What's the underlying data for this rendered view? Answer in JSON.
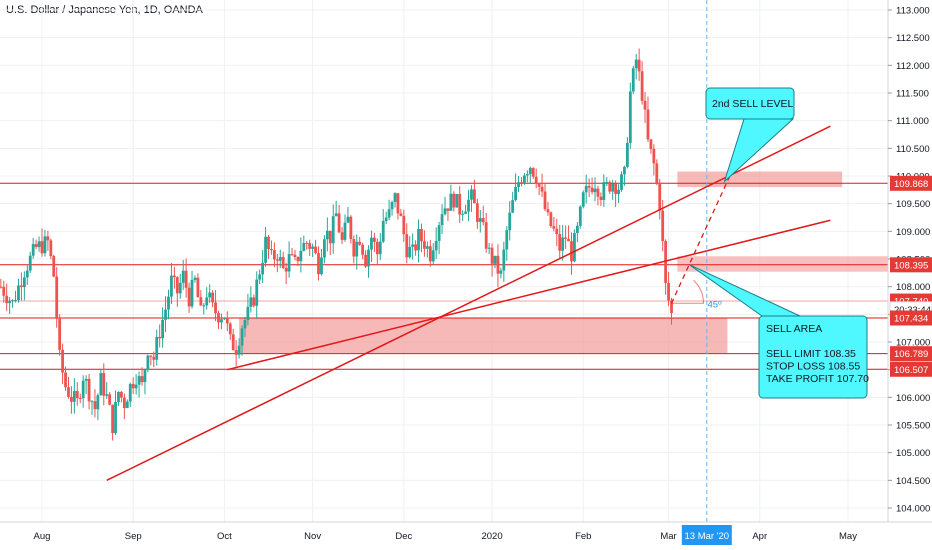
{
  "title": "U.S. Dollar / Japanese Yen, 1D, OANDA",
  "colors": {
    "up": "#26a69a",
    "down": "#ef5350",
    "line": "#e01818",
    "zone": "#f4a0a0",
    "callout_fill": "#4ff7ff",
    "callout_border": "#1b7f88",
    "dashed_vertical": "#64b5f6",
    "date_badge": "#2196f3",
    "price_badge": "#e53935",
    "grid": "#eef0f3"
  },
  "chart_data": {
    "type": "candlestick",
    "symbol": "U.S. Dollar / Japanese Yen",
    "timeframe": "1D",
    "source": "OANDA",
    "ylim": [
      103.7,
      113.1
    ],
    "y_ticks": [
      "113.000",
      "112.500",
      "112.000",
      "111.500",
      "111.000",
      "110.500",
      "110.000",
      "109.500",
      "109.000",
      "108.500",
      "108.000",
      "107.500",
      "107.000",
      "106.500",
      "106.000",
      "105.500",
      "105.000",
      "104.500",
      "104.000"
    ],
    "x_ticks": [
      "Aug",
      "Sep",
      "Oct",
      "Nov",
      "Dec",
      "2020",
      "Feb",
      "Mar",
      "Apr",
      "May"
    ],
    "x_tick_day": [
      0,
      31,
      62,
      92,
      123,
      153,
      184,
      213,
      244,
      274
    ],
    "close_path": [
      [
        -14,
        108.0
      ],
      [
        -10,
        107.7
      ],
      [
        -6,
        108.3
      ],
      [
        -2,
        108.7
      ],
      [
        2,
        108.8
      ],
      [
        4,
        108.2
      ],
      [
        6,
        106.7
      ],
      [
        8,
        106.2
      ],
      [
        10,
        106.0
      ],
      [
        12,
        105.9
      ],
      [
        14,
        106.4
      ],
      [
        16,
        106.1
      ],
      [
        18,
        105.8
      ],
      [
        20,
        106.3
      ],
      [
        22,
        106.0
      ],
      [
        24,
        105.5
      ],
      [
        26,
        106.1
      ],
      [
        28,
        105.9
      ],
      [
        30,
        106.2
      ],
      [
        32,
        106.4
      ],
      [
        34,
        106.2
      ],
      [
        36,
        106.9
      ],
      [
        38,
        106.7
      ],
      [
        40,
        107.2
      ],
      [
        42,
        107.6
      ],
      [
        44,
        108.1
      ],
      [
        46,
        107.9
      ],
      [
        48,
        108.2
      ],
      [
        50,
        107.8
      ],
      [
        52,
        108.1
      ],
      [
        54,
        107.5
      ],
      [
        56,
        107.9
      ],
      [
        58,
        107.6
      ],
      [
        60,
        107.5
      ],
      [
        62,
        107.5
      ],
      [
        64,
        107.0
      ],
      [
        66,
        106.9
      ],
      [
        68,
        107.3
      ],
      [
        70,
        107.5
      ],
      [
        72,
        107.8
      ],
      [
        74,
        108.3
      ],
      [
        76,
        108.8
      ],
      [
        78,
        108.5
      ],
      [
        80,
        108.6
      ],
      [
        82,
        108.3
      ],
      [
        84,
        108.5
      ],
      [
        86,
        108.4
      ],
      [
        88,
        108.7
      ],
      [
        90,
        108.8
      ],
      [
        92,
        108.7
      ],
      [
        94,
        108.4
      ],
      [
        96,
        109.0
      ],
      [
        98,
        108.9
      ],
      [
        100,
        109.3
      ],
      [
        102,
        108.8
      ],
      [
        104,
        109.2
      ],
      [
        106,
        108.7
      ],
      [
        108,
        108.9
      ],
      [
        110,
        108.5
      ],
      [
        112,
        108.9
      ],
      [
        114,
        108.6
      ],
      [
        116,
        109.2
      ],
      [
        118,
        109.3
      ],
      [
        120,
        109.6
      ],
      [
        122,
        109.2
      ],
      [
        124,
        108.7
      ],
      [
        126,
        108.6
      ],
      [
        128,
        108.9
      ],
      [
        130,
        108.8
      ],
      [
        132,
        108.6
      ],
      [
        134,
        109.0
      ],
      [
        136,
        109.4
      ],
      [
        138,
        109.5
      ],
      [
        140,
        109.6
      ],
      [
        142,
        109.4
      ],
      [
        144,
        109.5
      ],
      [
        146,
        109.6
      ],
      [
        148,
        109.3
      ],
      [
        150,
        109.0
      ],
      [
        152,
        108.6
      ],
      [
        154,
        108.4
      ],
      [
        156,
        108.2
      ],
      [
        158,
        109.0
      ],
      [
        160,
        109.5
      ],
      [
        162,
        109.9
      ],
      [
        164,
        110.1
      ],
      [
        166,
        110.2
      ],
      [
        168,
        110.0
      ],
      [
        170,
        109.6
      ],
      [
        172,
        109.2
      ],
      [
        174,
        109.0
      ],
      [
        176,
        108.7
      ],
      [
        178,
        108.9
      ],
      [
        180,
        108.6
      ],
      [
        182,
        109.0
      ],
      [
        184,
        109.6
      ],
      [
        186,
        109.8
      ],
      [
        188,
        109.9
      ],
      [
        190,
        109.7
      ],
      [
        192,
        109.8
      ],
      [
        194,
        109.9
      ],
      [
        196,
        109.8
      ],
      [
        198,
        110.0
      ],
      [
        200,
        111.5
      ],
      [
        202,
        112.1
      ],
      [
        204,
        111.5
      ],
      [
        206,
        110.6
      ],
      [
        208,
        110.2
      ],
      [
        210,
        109.5
      ],
      [
        212,
        108.0
      ],
      [
        214,
        107.5
      ]
    ],
    "sell_area_zone": [
      106.8,
      107.43
    ],
    "second_sell_zone": [
      109.8,
      110.08
    ],
    "upper_zone": [
      108.27,
      108.55
    ],
    "horizontal_levels": [
      109.868,
      108.395,
      107.434,
      106.789,
      106.507
    ],
    "trendlines": [
      {
        "from": [
          22,
          104.5
        ],
        "to": [
          268,
          110.9
        ]
      },
      {
        "from": [
          63,
          106.5
        ],
        "to": [
          268,
          109.2
        ]
      }
    ],
    "dashed_line": {
      "from": [
        214,
        107.7
      ],
      "to": [
        239,
        110.6
      ]
    },
    "angle_label": "45º",
    "current_vertical_day": 226,
    "date_badge": "13 Mar '20",
    "price_labels": [
      {
        "value": 109.868,
        "label": "109.868",
        "style": "red"
      },
      {
        "value": 108.395,
        "label": "108.395",
        "style": "red"
      },
      {
        "value": 107.74,
        "label": "107.740",
        "style": "red"
      },
      {
        "value": 107.59,
        "label": "20:33:44",
        "style": "white"
      },
      {
        "value": 107.434,
        "label": "107.434",
        "style": "red"
      },
      {
        "value": 106.789,
        "label": "106.789",
        "style": "red"
      },
      {
        "value": 106.507,
        "label": "106.507",
        "style": "red"
      }
    ],
    "callouts": [
      {
        "lines": [
          "2nd SELL LEVEL"
        ],
        "tail_to": [
          232,
          109.9
        ]
      },
      {
        "lines": [
          "SELL AREA",
          "",
          "SELL LIMIT 108.35",
          "STOP LOSS 108.55",
          "TAKE PROFIT 107.70"
        ],
        "tail_to": [
          220,
          108.4
        ]
      }
    ]
  }
}
